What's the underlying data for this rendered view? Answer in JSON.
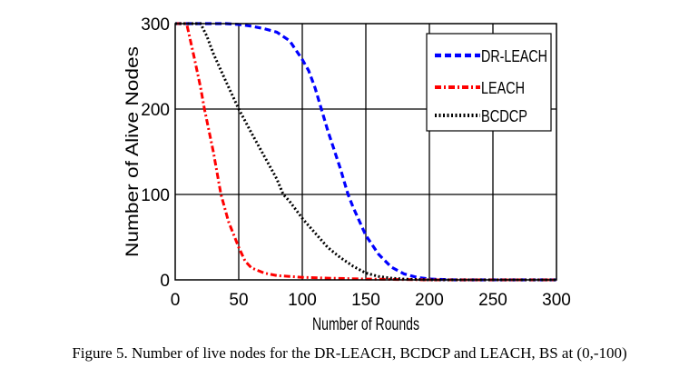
{
  "chart_data": {
    "type": "line",
    "title": "",
    "xlabel": "Number of Rounds",
    "ylabel": "Number of Alive Nodes",
    "xlim": [
      0,
      300
    ],
    "ylim": [
      0,
      300
    ],
    "xticks": [
      0,
      50,
      100,
      150,
      200,
      250,
      300
    ],
    "yticks": [
      0,
      100,
      200,
      300
    ],
    "xtick_labels": [
      "0",
      "50",
      "100",
      "150",
      "200",
      "250",
      "300"
    ],
    "ytick_labels": [
      "0",
      "100",
      "200",
      "300"
    ],
    "grid": true,
    "legend_position": "top-right",
    "series": [
      {
        "name": "DR-LEACH",
        "color": "#0000ff",
        "style": "dashed",
        "x": [
          0,
          20,
          40,
          50,
          60,
          70,
          80,
          90,
          100,
          105,
          110,
          115,
          120,
          130,
          136,
          140,
          150,
          160,
          170,
          180,
          190,
          200,
          220,
          250,
          300
        ],
        "y": [
          300,
          300,
          300,
          299,
          297,
          294,
          290,
          280,
          258,
          245,
          225,
          200,
          175,
          130,
          100,
          85,
          52,
          30,
          15,
          7,
          3,
          1,
          0,
          0,
          0
        ]
      },
      {
        "name": "LEACH",
        "color": "#ff0000",
        "style": "dashdot",
        "x": [
          0,
          9,
          15,
          20,
          23,
          30,
          36,
          42,
          50,
          55,
          60,
          70,
          80,
          90,
          100,
          120,
          150,
          200,
          250,
          300
        ],
        "y": [
          300,
          300,
          260,
          225,
          200,
          150,
          100,
          68,
          38,
          22,
          14,
          8,
          5,
          4,
          3,
          2,
          1,
          0,
          0,
          0
        ]
      },
      {
        "name": "BCDCP",
        "color": "#000000",
        "style": "dotted",
        "x": [
          0,
          20,
          25,
          30,
          40,
          50,
          60,
          70,
          80,
          85,
          90,
          100,
          110,
          120,
          130,
          140,
          150,
          160,
          170,
          180,
          200,
          250,
          300
        ],
        "y": [
          300,
          300,
          285,
          265,
          232,
          200,
          172,
          145,
          118,
          100,
          92,
          72,
          55,
          38,
          26,
          16,
          8,
          4,
          2,
          1,
          0,
          0,
          0
        ]
      }
    ]
  },
  "caption": "Figure 5. Number of live nodes for the DR-LEACH, BCDCP and LEACH, BS at (0,-100)"
}
